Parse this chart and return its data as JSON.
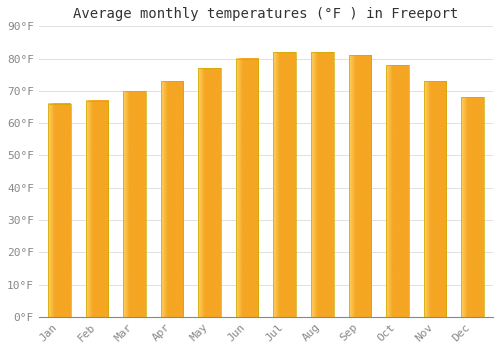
{
  "title": "Average monthly temperatures (°F ) in Freeport",
  "months": [
    "Jan",
    "Feb",
    "Mar",
    "Apr",
    "May",
    "Jun",
    "Jul",
    "Aug",
    "Sep",
    "Oct",
    "Nov",
    "Dec"
  ],
  "values": [
    66,
    67,
    70,
    73,
    77,
    80,
    82,
    82,
    81,
    78,
    73,
    68
  ],
  "bar_color_center": "#F5A623",
  "bar_color_edge": "#FFD060",
  "background_color": "#FFFFFF",
  "plot_bg_color": "#FFFFFF",
  "ylim": [
    0,
    90
  ],
  "yticks": [
    0,
    10,
    20,
    30,
    40,
    50,
    60,
    70,
    80,
    90
  ],
  "ytick_labels": [
    "0°F",
    "10°F",
    "20°F",
    "30°F",
    "40°F",
    "50°F",
    "60°F",
    "70°F",
    "80°F",
    "90°F"
  ],
  "grid_color": "#E0E0E0",
  "title_fontsize": 10,
  "tick_fontsize": 8,
  "font_family": "monospace",
  "tick_color": "#888888",
  "bar_width": 0.6
}
